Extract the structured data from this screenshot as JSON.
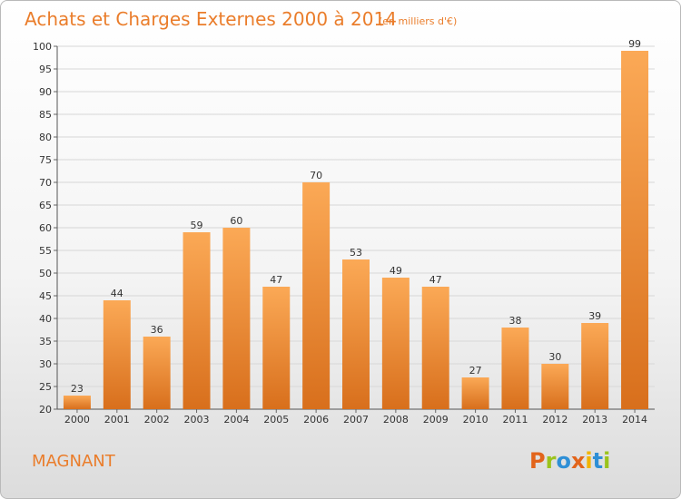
{
  "header": {
    "title": "Achats et Charges Externes 2000 à 2014",
    "unit": "(en milliers d'€)"
  },
  "footer": {
    "commune": "MAGNANT",
    "logo_text": "Proxiti",
    "logo_colors": [
      "#e2641b",
      "#9bc31c",
      "#2e8fd6",
      "#e2641b",
      "#f2b400",
      "#2e8fd6",
      "#9bc31c"
    ]
  },
  "colors": {
    "bar_light": "#fba956",
    "bar_dark": "#d86f1c",
    "accent": "#ea7d2b",
    "grid": "#d7d7d7"
  },
  "chart_data": {
    "type": "bar",
    "title": "Achats et Charges Externes 2000 à 2014",
    "subtitle": "(en milliers d'€)",
    "xlabel": "",
    "ylabel": "",
    "categories": [
      "2000",
      "2001",
      "2002",
      "2003",
      "2004",
      "2005",
      "2006",
      "2007",
      "2008",
      "2009",
      "2010",
      "2011",
      "2012",
      "2013",
      "2014"
    ],
    "values": [
      23,
      44,
      36,
      59,
      60,
      47,
      70,
      53,
      49,
      47,
      27,
      38,
      30,
      39,
      99
    ],
    "ylim": [
      20,
      100
    ],
    "yticks": [
      20,
      25,
      30,
      35,
      40,
      45,
      50,
      55,
      60,
      65,
      70,
      75,
      80,
      85,
      90,
      95,
      100
    ],
    "grid": true,
    "legend": "none"
  }
}
